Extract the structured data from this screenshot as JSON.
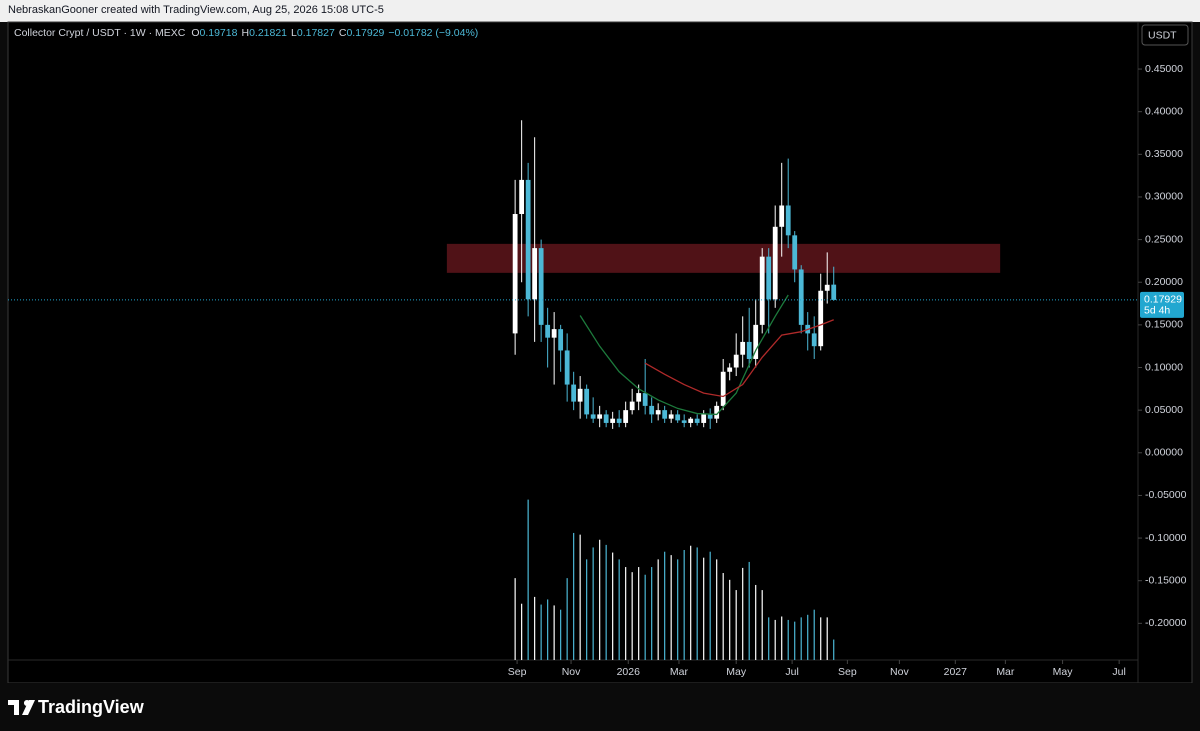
{
  "chart_data": {
    "type": "candlestick",
    "credit": "NebraskanGooner created with TradingView.com, Aug 25, 2026 15:08 UTC-5",
    "title": "Collector Crypt / USDT · 1W · MEXC",
    "ohlc_header": [
      {
        "label": "O",
        "value": 0.19718
      },
      {
        "label": "H",
        "value": 0.21821
      },
      {
        "label": "L",
        "value": 0.17827
      },
      {
        "label": "C",
        "value": 0.17929
      }
    ],
    "change_text": "−0.01782 (−9.04%)",
    "currency_button": "USDT",
    "brand": "TradingView",
    "up_color": "#ffffff",
    "down_color": "#4cb8d6",
    "ylim": [
      -0.243,
      0.504
    ],
    "yticks": [
      {
        "value": 0.45,
        "label": "0.45000"
      },
      {
        "value": 0.4,
        "label": "0.40000"
      },
      {
        "value": 0.35,
        "label": "0.35000"
      },
      {
        "value": 0.3,
        "label": "0.30000"
      },
      {
        "value": 0.25,
        "label": "0.25000"
      },
      {
        "value": 0.2,
        "label": "0.20000"
      },
      {
        "value": 0.15,
        "label": "0.15000"
      },
      {
        "value": 0.1,
        "label": "0.10000"
      },
      {
        "value": 0.05,
        "label": "0.05000"
      },
      {
        "value": 0,
        "label": "0.00000"
      },
      {
        "value": -0.05,
        "label": "-0.05000"
      },
      {
        "value": -0.1,
        "label": "-0.10000"
      },
      {
        "value": -0.15,
        "label": "-0.15000"
      },
      {
        "value": -0.2,
        "label": "-0.20000"
      }
    ],
    "xlim": [
      -78,
      95.8
    ],
    "xticks": [
      {
        "value": 0.3,
        "label": "Sep"
      },
      {
        "value": 8.6,
        "label": "Nov"
      },
      {
        "value": 17.4,
        "label": "2026"
      },
      {
        "value": 25.2,
        "label": "Mar"
      },
      {
        "value": 34,
        "label": "May"
      },
      {
        "value": 42.6,
        "label": "Jul"
      },
      {
        "value": 51.1,
        "label": "Sep"
      },
      {
        "value": 59.1,
        "label": "Nov"
      },
      {
        "value": 67.7,
        "label": "2027"
      },
      {
        "value": 75.4,
        "label": "Mar"
      },
      {
        "value": 84.2,
        "label": "May"
      },
      {
        "value": 92.9,
        "label": "Jul"
      }
    ],
    "x": [
      0,
      1,
      2,
      3,
      4,
      5,
      6,
      7,
      8,
      9,
      10,
      11,
      12,
      13,
      14,
      15,
      16,
      17,
      18,
      19,
      20,
      21,
      22,
      23,
      24,
      25,
      26,
      27,
      28,
      29,
      30,
      31,
      32,
      33,
      34,
      35,
      36,
      37,
      38,
      39,
      40,
      41,
      42,
      43,
      44,
      45,
      46,
      47,
      48,
      49
    ],
    "open": [
      0.14,
      0.28,
      0.32,
      0.18,
      0.24,
      0.15,
      0.135,
      0.145,
      0.12,
      0.08,
      0.06,
      0.075,
      0.045,
      0.04,
      0.045,
      0.035,
      0.04,
      0.035,
      0.05,
      0.06,
      0.07,
      0.055,
      0.045,
      0.05,
      0.04,
      0.045,
      0.038,
      0.035,
      0.04,
      0.035,
      0.045,
      0.04,
      0.055,
      0.095,
      0.1,
      0.115,
      0.13,
      0.11,
      0.15,
      0.23,
      0.18,
      0.265,
      0.29,
      0.255,
      0.215,
      0.15,
      0.14,
      0.125,
      0.19,
      0.19718
    ],
    "high": [
      0.32,
      0.39,
      0.34,
      0.37,
      0.25,
      0.17,
      0.165,
      0.15,
      0.14,
      0.095,
      0.09,
      0.08,
      0.065,
      0.055,
      0.05,
      0.048,
      0.05,
      0.06,
      0.075,
      0.08,
      0.11,
      0.065,
      0.058,
      0.055,
      0.05,
      0.05,
      0.045,
      0.042,
      0.045,
      0.05,
      0.052,
      0.06,
      0.11,
      0.105,
      0.14,
      0.16,
      0.17,
      0.18,
      0.24,
      0.24,
      0.29,
      0.34,
      0.345,
      0.26,
      0.22,
      0.165,
      0.16,
      0.21,
      0.235,
      0.21821
    ],
    "low": [
      0.115,
      0.2,
      0.16,
      0.13,
      0.13,
      0.1,
      0.08,
      0.095,
      0.06,
      0.05,
      0.04,
      0.04,
      0.035,
      0.03,
      0.03,
      0.028,
      0.03,
      0.03,
      0.045,
      0.05,
      0.045,
      0.035,
      0.038,
      0.035,
      0.035,
      0.035,
      0.03,
      0.03,
      0.032,
      0.03,
      0.028,
      0.035,
      0.05,
      0.085,
      0.09,
      0.1,
      0.1,
      0.1,
      0.14,
      0.14,
      0.17,
      0.23,
      0.24,
      0.2,
      0.14,
      0.12,
      0.11,
      0.12,
      0.175,
      0.17827
    ],
    "close": [
      0.28,
      0.32,
      0.18,
      0.24,
      0.15,
      0.135,
      0.145,
      0.12,
      0.08,
      0.06,
      0.075,
      0.045,
      0.04,
      0.045,
      0.035,
      0.04,
      0.035,
      0.05,
      0.06,
      0.07,
      0.055,
      0.045,
      0.05,
      0.04,
      0.045,
      0.038,
      0.035,
      0.04,
      0.035,
      0.045,
      0.04,
      0.055,
      0.095,
      0.1,
      0.115,
      0.13,
      0.11,
      0.15,
      0.23,
      0.18,
      0.265,
      0.29,
      0.255,
      0.215,
      0.15,
      0.14,
      0.125,
      0.19,
      0.197,
      0.17929
    ],
    "volume": [
      -0.147,
      -0.177,
      -0.055,
      -0.169,
      -0.178,
      -0.172,
      -0.179,
      -0.184,
      -0.147,
      -0.094,
      -0.096,
      -0.125,
      -0.111,
      -0.102,
      -0.108,
      -0.117,
      -0.125,
      -0.134,
      -0.14,
      -0.134,
      -0.143,
      -0.134,
      -0.125,
      -0.116,
      -0.12,
      -0.125,
      -0.114,
      -0.109,
      -0.111,
      -0.123,
      -0.116,
      -0.125,
      -0.141,
      -0.149,
      -0.161,
      -0.135,
      -0.128,
      -0.155,
      -0.161,
      -0.193,
      -0.196,
      -0.192,
      -0.196,
      -0.198,
      -0.193,
      -0.19,
      -0.184,
      -0.193,
      -0.193,
      -0.219
    ],
    "ma_lines": [
      {
        "color": "#1d7a3c",
        "x": [
          10,
          13,
          16,
          19,
          22,
          25,
          28,
          31,
          34,
          37,
          40,
          42
        ],
        "values": [
          0.161,
          0.125,
          0.095,
          0.075,
          0.062,
          0.052,
          0.046,
          0.045,
          0.07,
          0.12,
          0.16,
          0.185
        ]
      },
      {
        "color": "#b02a2a",
        "x": [
          20,
          23,
          26,
          29,
          32,
          35,
          38,
          41,
          44,
          47,
          49
        ],
        "values": [
          0.105,
          0.092,
          0.08,
          0.07,
          0.066,
          0.08,
          0.112,
          0.138,
          0.142,
          0.15,
          0.156
        ]
      }
    ],
    "zone": {
      "color": "#5e151b",
      "x": [
        -10.5,
        74.6
      ],
      "y": [
        0.211,
        0.245
      ]
    },
    "last_price": 0.17929,
    "countdown": "5d 4h",
    "last_color": "#22a7d0"
  }
}
